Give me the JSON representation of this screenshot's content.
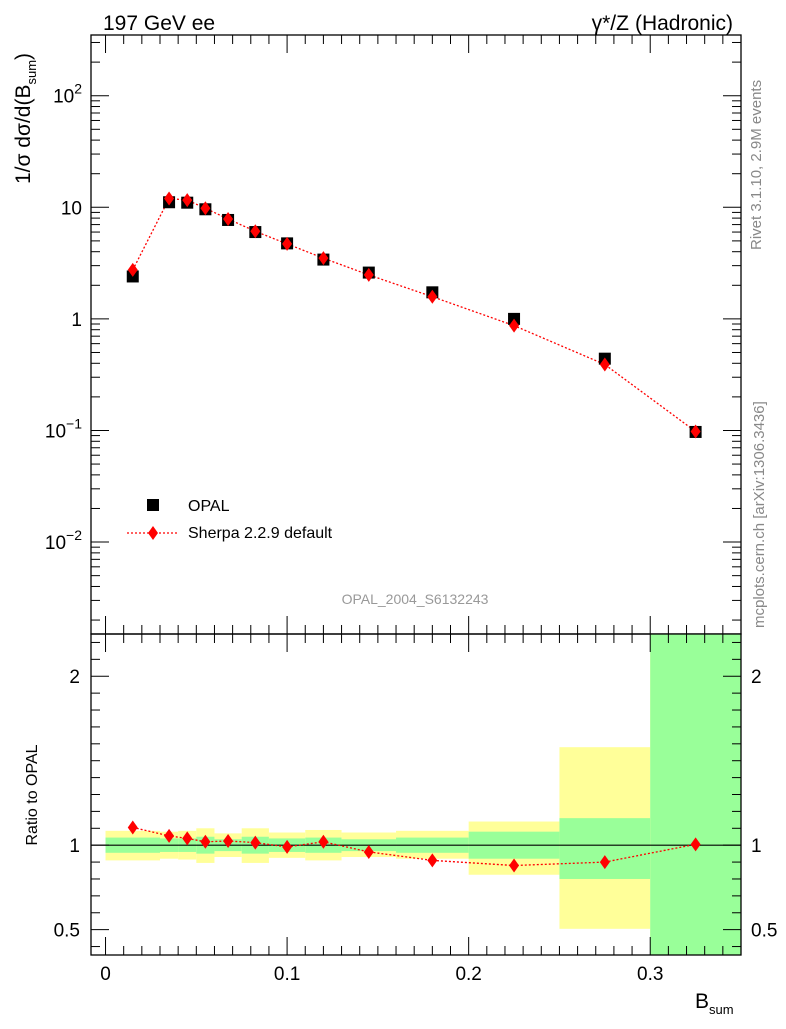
{
  "header": {
    "left": "197 GeV ee",
    "right_sym": "γ*/Z",
    "right_text": "(Hadronic)"
  },
  "side_labels": {
    "top": "Rivet 3.1.10,  2.9M events",
    "bottom": "mcplots.cern.ch [arXiv:1306.3436]"
  },
  "watermark": "OPAL_2004_S6132243",
  "colors": {
    "data": "#000000",
    "mc": "#ff0000",
    "band_inner": "#99ff99",
    "band_outer": "#ffff99"
  },
  "chart_data": [
    {
      "type": "scatter",
      "panel": "main",
      "ylabel_main": "1/σ dσ/d(B",
      "ylabel_sub": "sum",
      "y_log": true,
      "xlim": [
        -0.008,
        0.35
      ],
      "ylim": [
        0.0015,
        350
      ],
      "y_tick_labels": [
        {
          "value": 0.01,
          "base": "10",
          "exp": "−2"
        },
        {
          "value": 0.1,
          "base": "10",
          "exp": "−1"
        },
        {
          "value": 1,
          "base": "1",
          "exp": ""
        },
        {
          "value": 10,
          "base": "10",
          "exp": ""
        },
        {
          "value": 100,
          "base": "10",
          "exp": "2"
        }
      ],
      "legend_position": "bottom-left",
      "series": [
        {
          "name": "OPAL",
          "marker": "square",
          "x": [
            0.015,
            0.035,
            0.045,
            0.055,
            0.0675,
            0.0825,
            0.1,
            0.12,
            0.145,
            0.18,
            0.225,
            0.275,
            0.325
          ],
          "y": [
            2.4,
            11.1,
            11.0,
            9.6,
            7.7,
            6.0,
            4.75,
            3.4,
            2.6,
            1.73,
            1.0,
            0.44,
            0.097
          ]
        },
        {
          "name": "Sherpa 2.2.9 default",
          "marker": "diamond",
          "x": [
            0.015,
            0.035,
            0.045,
            0.055,
            0.0675,
            0.0825,
            0.1,
            0.12,
            0.145,
            0.18,
            0.225,
            0.275,
            0.325
          ],
          "y": [
            2.75,
            12.0,
            11.6,
            9.8,
            7.85,
            6.1,
            4.7,
            3.5,
            2.48,
            1.58,
            0.87,
            0.39,
            0.098
          ]
        }
      ]
    },
    {
      "type": "line",
      "panel": "ratio",
      "ylabel": "Ratio to OPAL",
      "xlabel_main": "B",
      "xlabel_sub": "sum",
      "xlim": [
        -0.008,
        0.35
      ],
      "ylim": [
        0.35,
        2.25
      ],
      "x_ticks": [
        0,
        0.1,
        0.2,
        0.3
      ],
      "x_tick_labels": [
        "0",
        "0.1",
        "0.2",
        "0.3"
      ],
      "y_ticks": [
        0.5,
        1,
        2
      ],
      "y_tick_labels": [
        "0.5",
        "1",
        "2"
      ],
      "reference_line": 1,
      "bands": [
        {
          "x0": 0.0,
          "x1": 0.03,
          "inner": [
            0.955,
            1.045
          ],
          "outer": [
            0.91,
            1.085
          ]
        },
        {
          "x0": 0.03,
          "x1": 0.04,
          "inner": [
            0.96,
            1.04
          ],
          "outer": [
            0.92,
            1.08
          ]
        },
        {
          "x0": 0.04,
          "x1": 0.05,
          "inner": [
            0.96,
            1.04
          ],
          "outer": [
            0.915,
            1.085
          ]
        },
        {
          "x0": 0.05,
          "x1": 0.06,
          "inner": [
            0.95,
            1.05
          ],
          "outer": [
            0.895,
            1.1
          ]
        },
        {
          "x0": 0.06,
          "x1": 0.075,
          "inner": [
            0.965,
            1.035
          ],
          "outer": [
            0.93,
            1.07
          ]
        },
        {
          "x0": 0.075,
          "x1": 0.09,
          "inner": [
            0.95,
            1.05
          ],
          "outer": [
            0.895,
            1.1
          ]
        },
        {
          "x0": 0.09,
          "x1": 0.11,
          "inner": [
            0.96,
            1.04
          ],
          "outer": [
            0.925,
            1.075
          ]
        },
        {
          "x0": 0.11,
          "x1": 0.13,
          "inner": [
            0.955,
            1.045
          ],
          "outer": [
            0.91,
            1.09
          ]
        },
        {
          "x0": 0.13,
          "x1": 0.16,
          "inner": [
            0.965,
            1.035
          ],
          "outer": [
            0.93,
            1.075
          ]
        },
        {
          "x0": 0.16,
          "x1": 0.2,
          "inner": [
            0.955,
            1.045
          ],
          "outer": [
            0.92,
            1.085
          ]
        },
        {
          "x0": 0.2,
          "x1": 0.25,
          "inner": [
            0.92,
            1.08
          ],
          "outer": [
            0.825,
            1.14
          ]
        },
        {
          "x0": 0.25,
          "x1": 0.3,
          "inner": [
            0.8,
            1.16
          ],
          "outer": [
            0.505,
            1.58
          ]
        },
        {
          "x0": 0.3,
          "x1": 0.35,
          "inner": [
            0.35,
            2.25
          ],
          "outer": [
            0.35,
            2.25
          ]
        }
      ],
      "series": [
        {
          "name": "Sherpa 2.2.9 default",
          "x": [
            0.015,
            0.035,
            0.045,
            0.055,
            0.0675,
            0.0825,
            0.1,
            0.12,
            0.145,
            0.18,
            0.225,
            0.275,
            0.325
          ],
          "y": [
            1.105,
            1.055,
            1.04,
            1.02,
            1.025,
            1.015,
            0.99,
            1.02,
            0.96,
            0.91,
            0.88,
            0.9,
            1.005
          ]
        }
      ]
    }
  ]
}
